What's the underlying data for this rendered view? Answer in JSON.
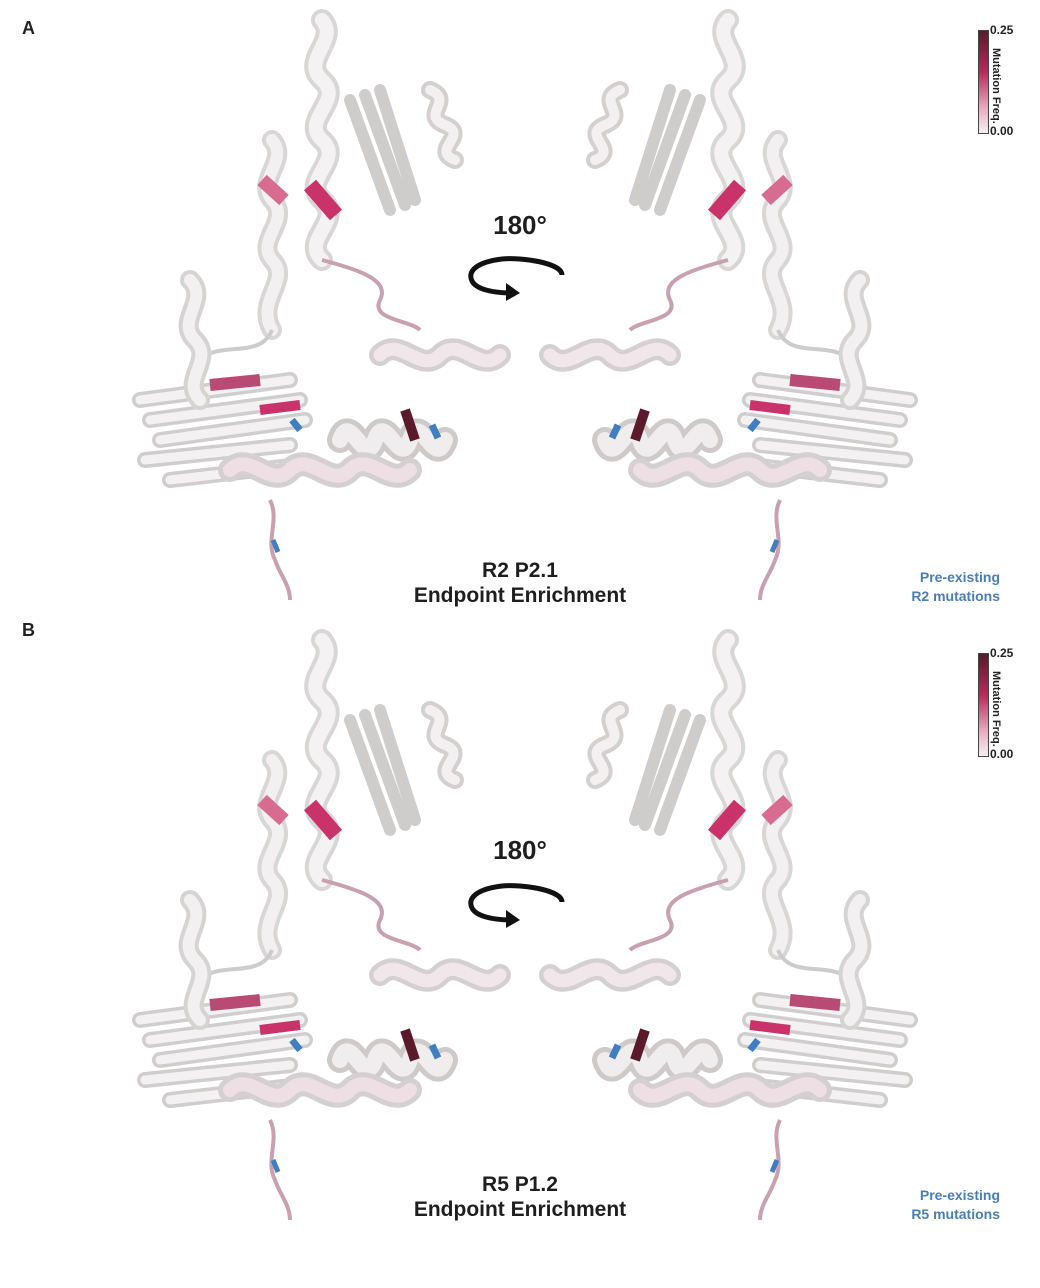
{
  "panels": [
    {
      "letter": "A",
      "title_line1": "R2 P2.1",
      "title_line2": "Endpoint Enrichment",
      "rotation_label": "180°",
      "note_line1": "Pre-existing",
      "note_line2": "R2 mutations",
      "scale": {
        "max": "0.25",
        "min": "0.00",
        "label": "Mutation Freq."
      }
    },
    {
      "letter": "B",
      "title_line1": "R5 P1.2",
      "title_line2": "Endpoint Enrichment",
      "rotation_label": "180°",
      "note_line1": "Pre-existing",
      "note_line2": "R5 mutations",
      "scale": {
        "max": "0.25",
        "min": "0.00",
        "label": "Mutation Freq."
      }
    }
  ],
  "colors": {
    "background": "#ffffff",
    "ribbon_base": "#e6e4e4",
    "ribbon_low": "#e7b9c8",
    "ribbon_mid": "#c9336a",
    "ribbon_high": "#5a1a2c",
    "preexisting": "#3f7fc1",
    "note_text": "#4a7fb5"
  },
  "icons": [
    "rotation-arrow-icon",
    "protein-cartoon-left-icon",
    "protein-cartoon-right-icon"
  ]
}
